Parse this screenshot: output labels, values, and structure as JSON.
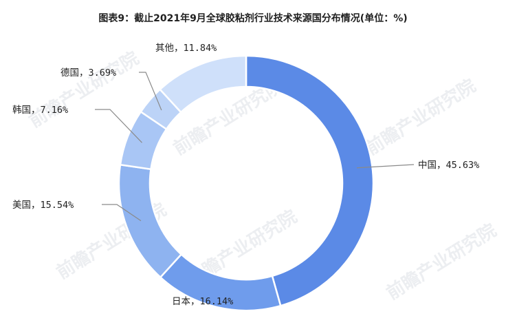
{
  "title": "图表9：截止2021年9月全球胶粘剂行业技术来源国分布情况(单位：%)",
  "watermark_text": "前瞻产业研究院",
  "chart_data": {
    "type": "pie",
    "style": "donut",
    "title": "图表9：截止2021年9月全球胶粘剂行业技术来源国分布情况(单位：%)",
    "unit": "%",
    "slices": [
      {
        "label": "中国",
        "value": 45.63,
        "display": "中国，45.63%",
        "color": "#5b8ae6"
      },
      {
        "label": "日本",
        "value": 16.14,
        "display": "日本，16.14%",
        "color": "#6f9cec"
      },
      {
        "label": "美国",
        "value": 15.54,
        "display": "美国，15.54%",
        "color": "#8eb3f0"
      },
      {
        "label": "韩国",
        "value": 7.16,
        "display": "韩国，7.16%",
        "color": "#a9c6f5"
      },
      {
        "label": "德国",
        "value": 3.69,
        "display": "德国，3.69%",
        "color": "#bcd3f7"
      },
      {
        "label": "其他",
        "value": 11.84,
        "display": "其他，11.84%",
        "color": "#cfe0fa"
      }
    ]
  }
}
